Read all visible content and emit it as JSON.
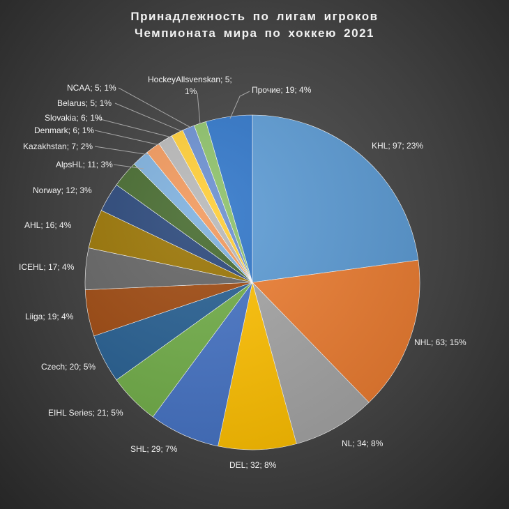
{
  "chart_data": {
    "type": "pie",
    "title_lines": [
      "Принадлежность  по  лигам  игроков",
      "Чемпионата  мира  по  хоккею  2021"
    ],
    "slices": [
      {
        "label": "KHL",
        "value": 97,
        "percent": "23%",
        "color": "#5b9bd5"
      },
      {
        "label": "NHL",
        "value": 63,
        "percent": "15%",
        "color": "#ed7d31"
      },
      {
        "label": "NL",
        "value": 34,
        "percent": "8%",
        "color": "#a5a5a5"
      },
      {
        "label": "DEL",
        "value": 32,
        "percent": "8%",
        "color": "#ffc000"
      },
      {
        "label": "SHL",
        "value": 29,
        "percent": "7%",
        "color": "#4472c4"
      },
      {
        "label": "EIHL Series",
        "value": 21,
        "percent": "5%",
        "color": "#70ad47"
      },
      {
        "label": "Czech",
        "value": 20,
        "percent": "5%",
        "color": "#255e91"
      },
      {
        "label": "Liiga",
        "value": 19,
        "percent": "4%",
        "color": "#9e480e"
      },
      {
        "label": "ICEHL",
        "value": 17,
        "percent": "4%",
        "color": "#636363"
      },
      {
        "label": "AHL",
        "value": 16,
        "percent": "4%",
        "color": "#997300"
      },
      {
        "label": "Norway",
        "value": 12,
        "percent": "3%",
        "color": "#264478"
      },
      {
        "label": "AlpsHL",
        "value": 11,
        "percent": "3%",
        "color": "#43682b"
      },
      {
        "label": "Kazakhstan",
        "value": 7,
        "percent": "2%",
        "color": "#7cafdd"
      },
      {
        "label": "Denmark",
        "value": 6,
        "percent": "1%",
        "color": "#f1975a"
      },
      {
        "label": "Slovakia",
        "value": 6,
        "percent": "1%",
        "color": "#b7b7b7"
      },
      {
        "label": "Belarus",
        "value": 5,
        "percent": "1%",
        "color": "#ffcd33"
      },
      {
        "label": "NCAA",
        "value": 5,
        "percent": "1%",
        "color": "#698ed0"
      },
      {
        "label": "HockeyAllsvenskan",
        "value": 5,
        "percent": "1%",
        "color": "#8cc168"
      },
      {
        "label": "Прочие",
        "value": 19,
        "percent": "4%",
        "color": "#2e75c9"
      }
    ],
    "legend": "none"
  }
}
